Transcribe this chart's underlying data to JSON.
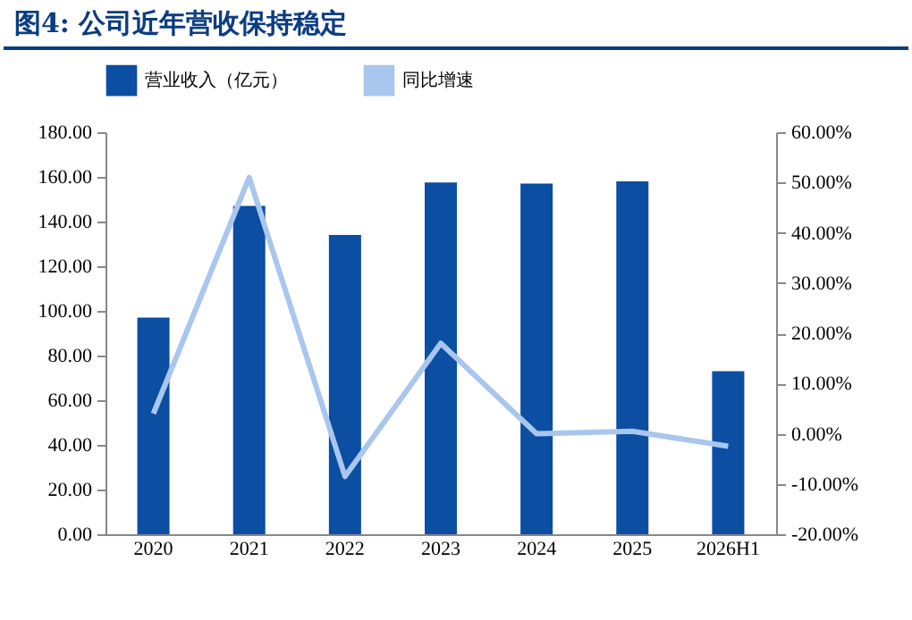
{
  "chart_data": {
    "type": "bar",
    "title": "图4: 公司近年营收保持稳定",
    "categories": [
      "2020",
      "2021",
      "2022",
      "2023",
      "2024",
      "2025",
      "2026H1"
    ],
    "series": [
      {
        "name": "营业收入（亿元）",
        "color": "#0b4ea2",
        "values": [
          97,
          147,
          134,
          157.5,
          157,
          158,
          73
        ]
      },
      {
        "name": "同比增速",
        "type": "line",
        "axis": "y2",
        "color": "#a9c6ee",
        "values": [
          4,
          51,
          -8.5,
          18,
          0,
          0.5,
          -2.5
        ]
      }
    ],
    "ylim": [
      0,
      180
    ],
    "yticks": [
      {
        "value": 0,
        "label": "0.00"
      },
      {
        "value": 20,
        "label": "20.00"
      },
      {
        "value": 40,
        "label": "40.00"
      },
      {
        "value": 60,
        "label": "60.00"
      },
      {
        "value": 80,
        "label": "80.00"
      },
      {
        "value": 100,
        "label": "100.00"
      },
      {
        "value": 120,
        "label": "120.00"
      },
      {
        "value": 140,
        "label": "140.00"
      },
      {
        "value": 160,
        "label": "160.00"
      },
      {
        "value": 180,
        "label": "180.00"
      }
    ],
    "y2lim": [
      -20,
      60
    ],
    "y2ticks": [
      {
        "value": -20,
        "label": "-20.00%"
      },
      {
        "value": -10,
        "label": "-10.00%"
      },
      {
        "value": 0,
        "label": "0.00%"
      },
      {
        "value": 10,
        "label": "10.00%"
      },
      {
        "value": 20,
        "label": "20.00%"
      },
      {
        "value": 30,
        "label": "30.00%"
      },
      {
        "value": 40,
        "label": "40.00%"
      },
      {
        "value": 50,
        "label": "50.00%"
      },
      {
        "value": 60,
        "label": "60.00%"
      }
    ],
    "legend": "top",
    "grid": false
  }
}
